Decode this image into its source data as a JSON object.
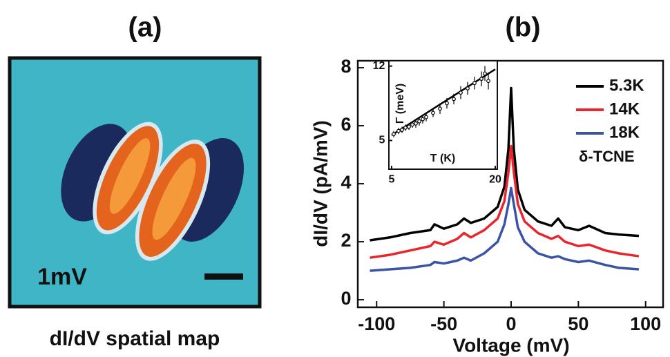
{
  "panel_a": {
    "label": "(a)",
    "annotation": "1mV",
    "caption": "dI/dV spatial map"
  },
  "chart_data": [
    {
      "type": "line",
      "title": "(b)",
      "x_label": "Voltage (mV)",
      "y_label": "dI/dV (pA/mV)",
      "x": [
        -105,
        -90,
        -75,
        -60,
        -57,
        -50,
        -40,
        -35,
        -30,
        -20,
        -10,
        -5,
        -2,
        0,
        2,
        5,
        10,
        20,
        30,
        35,
        40,
        50,
        58,
        70,
        80,
        95
      ],
      "series": [
        {
          "name": "5.3K",
          "color": "#000000",
          "values": [
            2.05,
            2.15,
            2.3,
            2.4,
            2.6,
            2.45,
            2.6,
            2.8,
            2.65,
            2.8,
            3.2,
            3.9,
            5.2,
            7.3,
            5.2,
            3.8,
            3.1,
            2.7,
            2.55,
            2.8,
            2.5,
            2.4,
            2.55,
            2.3,
            2.25,
            2.2
          ]
        },
        {
          "name": "14K",
          "color": "#e8262d",
          "values": [
            1.45,
            1.55,
            1.7,
            1.85,
            2.0,
            1.9,
            2.1,
            2.3,
            2.15,
            2.4,
            2.8,
            3.4,
            4.4,
            5.3,
            4.4,
            3.3,
            2.7,
            2.3,
            2.1,
            2.2,
            2.0,
            1.85,
            1.9,
            1.7,
            1.6,
            1.5
          ]
        },
        {
          "name": "18K",
          "color": "#3a53a4",
          "values": [
            1.0,
            1.05,
            1.1,
            1.2,
            1.3,
            1.25,
            1.35,
            1.45,
            1.35,
            1.6,
            2.0,
            2.6,
            3.3,
            3.85,
            3.3,
            2.5,
            2.0,
            1.6,
            1.45,
            1.5,
            1.4,
            1.3,
            1.35,
            1.2,
            1.1,
            1.05
          ]
        }
      ],
      "annotation": "δ-TCNE",
      "legend": "upper right",
      "xlim": [
        -114,
        113
      ],
      "ylim": [
        -0.26,
        8.24
      ],
      "xticks": [
        -100,
        -50,
        0,
        50,
        100
      ],
      "yticks": [
        0,
        2,
        4,
        6,
        8
      ]
    },
    {
      "type": "scatter",
      "x_label": "T (K)",
      "y_label": "Γ (meV)",
      "x": [
        5.3,
        6,
        6.5,
        7,
        7.5,
        8,
        8.5,
        9,
        9.5,
        10,
        11,
        12,
        13,
        14,
        15,
        16,
        17,
        18,
        18.5,
        19
      ],
      "series": [
        {
          "color": "#000000",
          "values": [
            5.6,
            5.9,
            6.0,
            6.2,
            6.3,
            6.5,
            6.6,
            6.8,
            7.0,
            7.2,
            7.6,
            8.0,
            8.5,
            8.9,
            9.5,
            9.9,
            10.4,
            10.8,
            11.3,
            10.6
          ],
          "errors": [
            0.3,
            0.3,
            0.3,
            0.3,
            0.3,
            0.3,
            0.4,
            0.4,
            0.4,
            0.4,
            0.4,
            0.5,
            0.5,
            0.5,
            0.6,
            0.6,
            0.6,
            0.7,
            0.7,
            0.8
          ]
        }
      ],
      "fit": {
        "x": [
          5,
          20
        ],
        "values": [
          5.5,
          11.7
        ],
        "color": "#000000"
      },
      "xlim": [
        4.6,
        20.3
      ],
      "ylim": [
        2.3,
        12.5
      ],
      "xticks": [
        5,
        20
      ],
      "yticks": [
        5,
        12
      ]
    }
  ]
}
